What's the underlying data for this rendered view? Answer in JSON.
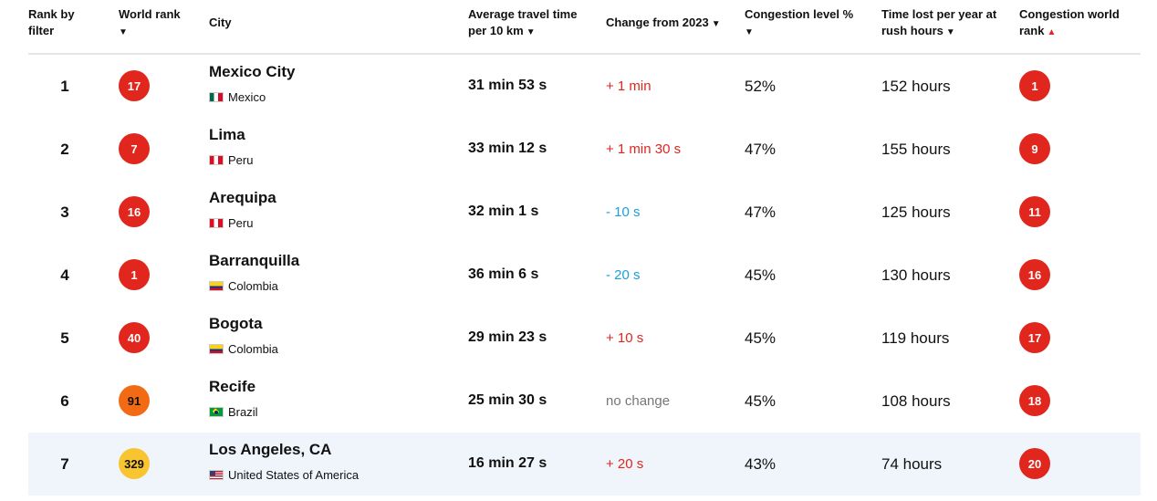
{
  "headers": {
    "rank_by_filter": [
      "Rank by",
      "filter"
    ],
    "world_rank": [
      "World rank"
    ],
    "city": "City",
    "avg_travel": [
      "Average travel time",
      "per 10 km"
    ],
    "change": "Change from 2023",
    "congestion": [
      "Congestion level %"
    ],
    "time_lost": [
      "Time lost per year at",
      "rush hours"
    ],
    "cong_world_rank": [
      "Congestion world",
      "rank"
    ]
  },
  "sort_icons": {
    "down": "▼",
    "up": "▲"
  },
  "colors": {
    "red": "#e0261d",
    "orange": "#f26a13",
    "yellow": "#f8c531",
    "change_positive": "#e0261d",
    "change_negative": "#1a9fd8",
    "change_none": "#777777",
    "highlight_row": "#eff5fb"
  },
  "rows": [
    {
      "rank": "1",
      "world_rank": "17",
      "world_color": "red",
      "city": "Mexico City",
      "country": "Mexico",
      "flag": "mx",
      "travel": "31 min 53 s",
      "change": "+ 1 min",
      "change_type": "pos",
      "congestion": "52%",
      "lost": "152 hours",
      "cong_rank": "1"
    },
    {
      "rank": "2",
      "world_rank": "7",
      "world_color": "red",
      "city": "Lima",
      "country": "Peru",
      "flag": "pe",
      "travel": "33 min 12 s",
      "change": "+ 1 min 30 s",
      "change_type": "pos",
      "congestion": "47%",
      "lost": "155 hours",
      "cong_rank": "9"
    },
    {
      "rank": "3",
      "world_rank": "16",
      "world_color": "red",
      "city": "Arequipa",
      "country": "Peru",
      "flag": "pe",
      "travel": "32 min 1 s",
      "change": "- 10 s",
      "change_type": "neg",
      "congestion": "47%",
      "lost": "125 hours",
      "cong_rank": "11"
    },
    {
      "rank": "4",
      "world_rank": "1",
      "world_color": "red",
      "city": "Barranquilla",
      "country": "Colombia",
      "flag": "co",
      "travel": "36 min 6 s",
      "change": "- 20 s",
      "change_type": "neg",
      "congestion": "45%",
      "lost": "130 hours",
      "cong_rank": "16"
    },
    {
      "rank": "5",
      "world_rank": "40",
      "world_color": "red",
      "city": "Bogota",
      "country": "Colombia",
      "flag": "co",
      "travel": "29 min 23 s",
      "change": "+ 10 s",
      "change_type": "pos",
      "congestion": "45%",
      "lost": "119 hours",
      "cong_rank": "17"
    },
    {
      "rank": "6",
      "world_rank": "91",
      "world_color": "orange",
      "city": "Recife",
      "country": "Brazil",
      "flag": "br",
      "travel": "25 min 30 s",
      "change": "no change",
      "change_type": "none",
      "congestion": "45%",
      "lost": "108 hours",
      "cong_rank": "18"
    },
    {
      "rank": "7",
      "world_rank": "329",
      "world_color": "yellow",
      "city": "Los Angeles, CA",
      "country": "United States of America",
      "flag": "us",
      "travel": "16 min 27 s",
      "change": "+ 20 s",
      "change_type": "pos",
      "congestion": "43%",
      "lost": "74 hours",
      "cong_rank": "20",
      "highlighted": true
    }
  ]
}
